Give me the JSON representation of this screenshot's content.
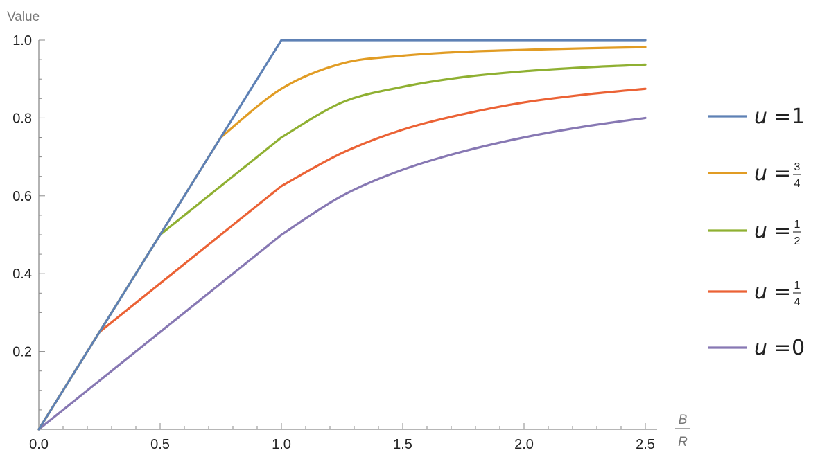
{
  "chart_data": {
    "type": "line",
    "ylabel": "Value",
    "xlabel": {
      "numerator": "B",
      "denominator": "R"
    },
    "xlim": [
      0,
      2.5
    ],
    "ylim": [
      0,
      1.0
    ],
    "x_ticks": [
      0.0,
      0.5,
      1.0,
      1.5,
      2.0,
      2.5
    ],
    "y_ticks": [
      0.2,
      0.4,
      0.6,
      0.8,
      1.0
    ],
    "x_tick_labels": [
      "0.0",
      "0.5",
      "1.0",
      "1.5",
      "2.0",
      "2.5"
    ],
    "y_tick_labels": [
      "0.2",
      "0.4",
      "0.6",
      "0.8",
      "1.0"
    ],
    "grid": false,
    "legend_position": "right",
    "x": [
      0,
      0.25,
      0.5,
      0.75,
      1.0,
      1.25,
      1.5,
      1.75,
      2.0,
      2.25,
      2.5
    ],
    "series": [
      {
        "var": "u",
        "eq": "=",
        "value_text": "1",
        "value_kind": "integer",
        "color": "#5e81b5",
        "values": [
          0,
          0.25,
          0.5,
          0.75,
          1.0,
          1.0,
          1.0,
          1.0,
          1.0,
          1.0,
          1.0
        ]
      },
      {
        "var": "u",
        "eq": "=",
        "numerator": "3",
        "denominator": "4",
        "value_kind": "fraction",
        "color": "#e19c24",
        "values": [
          0,
          0.25,
          0.5,
          0.75,
          0.875,
          0.94,
          0.96,
          0.97,
          0.975,
          0.979,
          0.982
        ]
      },
      {
        "var": "u",
        "eq": "=",
        "numerator": "1",
        "denominator": "2",
        "value_kind": "fraction",
        "color": "#8fb032",
        "values": [
          0,
          0.25,
          0.5,
          0.625,
          0.75,
          0.84,
          0.88,
          0.905,
          0.92,
          0.93,
          0.937
        ]
      },
      {
        "var": "u",
        "eq": "=",
        "numerator": "1",
        "denominator": "4",
        "value_kind": "fraction",
        "color": "#eb6235",
        "values": [
          0,
          0.25,
          0.375,
          0.5,
          0.625,
          0.71,
          0.77,
          0.81,
          0.84,
          0.86,
          0.875
        ]
      },
      {
        "var": "u",
        "eq": "=",
        "value_text": "0",
        "value_kind": "integer",
        "color": "#8778b3",
        "values": [
          0,
          0.125,
          0.25,
          0.375,
          0.5,
          0.6,
          0.667,
          0.714,
          0.75,
          0.778,
          0.8
        ]
      }
    ]
  }
}
